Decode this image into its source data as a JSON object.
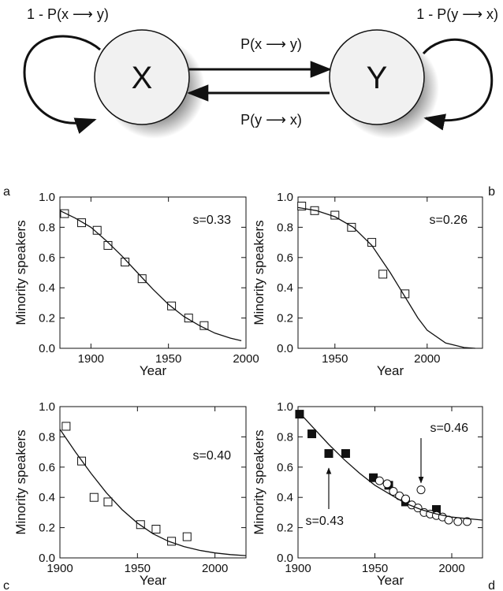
{
  "diagram": {
    "node_x": "X",
    "node_y": "Y",
    "label_self_x": "1 - P(x ⟶ y)",
    "label_self_y": "1 - P(y ⟶ x)",
    "label_x_to_y": "P(x ⟶ y)",
    "label_y_to_x": "P(y ⟶ x)"
  },
  "chart_data": [
    {
      "type": "scatter",
      "panel_label": "a",
      "xlabel": "Year",
      "ylabel": "Minority speakers",
      "xlim": [
        1880,
        2000
      ],
      "ylim": [
        0,
        1
      ],
      "xticks": [
        1900,
        1950,
        2000
      ],
      "yticks": [
        0.0,
        0.2,
        0.4,
        0.6,
        0.8,
        1.0
      ],
      "annotations": [
        {
          "text": "s=0.33"
        }
      ],
      "series": [
        {
          "marker": "open-square",
          "x": [
            1883,
            1894,
            1904,
            1911,
            1922,
            1933,
            1952,
            1963,
            1973
          ],
          "y": [
            0.89,
            0.83,
            0.78,
            0.68,
            0.57,
            0.46,
            0.28,
            0.2,
            0.15
          ]
        },
        {
          "marker": "line",
          "x": [
            1880,
            1890,
            1900,
            1910,
            1920,
            1930,
            1940,
            1950,
            1960,
            1970,
            1980,
            1990,
            1997
          ],
          "y": [
            0.91,
            0.86,
            0.8,
            0.71,
            0.61,
            0.5,
            0.39,
            0.29,
            0.21,
            0.15,
            0.1,
            0.067,
            0.05
          ]
        }
      ]
    },
    {
      "type": "scatter",
      "panel_label": "b",
      "xlabel": "Year",
      "ylabel": "Minority speakers",
      "xlim": [
        1930,
        2030
      ],
      "ylim": [
        0,
        1
      ],
      "xticks": [
        1950,
        2000
      ],
      "yticks": [
        0.0,
        0.2,
        0.4,
        0.6,
        0.8,
        1.0
      ],
      "annotations": [
        {
          "text": "s=0.26"
        }
      ],
      "series": [
        {
          "marker": "open-square",
          "x": [
            1932,
            1939,
            1950,
            1959,
            1970,
            1976,
            1988
          ],
          "y": [
            0.94,
            0.91,
            0.88,
            0.8,
            0.7,
            0.49,
            0.36
          ]
        },
        {
          "marker": "line",
          "x": [
            1930,
            1940,
            1950,
            1960,
            1970,
            1975,
            1980,
            1985,
            1990,
            1995,
            2000,
            2010,
            2020,
            2026
          ],
          "y": [
            0.93,
            0.91,
            0.87,
            0.8,
            0.68,
            0.59,
            0.5,
            0.4,
            0.3,
            0.2,
            0.12,
            0.035,
            0.005,
            0.0
          ]
        }
      ]
    },
    {
      "type": "scatter",
      "panel_label": "c",
      "xlabel": "Year",
      "ylabel": "Minority speakers",
      "xlim": [
        1900,
        2020
      ],
      "ylim": [
        0,
        1
      ],
      "xticks": [
        1900,
        1950,
        2000
      ],
      "yticks": [
        0.0,
        0.2,
        0.4,
        0.6,
        0.8,
        1.0
      ],
      "annotations": [
        {
          "text": "s=0.40"
        }
      ],
      "series": [
        {
          "marker": "open-square",
          "x": [
            1904,
            1914,
            1922,
            1931,
            1952,
            1962,
            1972,
            1982
          ],
          "y": [
            0.87,
            0.64,
            0.4,
            0.37,
            0.22,
            0.19,
            0.11,
            0.14
          ]
        },
        {
          "marker": "line",
          "x": [
            1900,
            1910,
            1920,
            1930,
            1940,
            1950,
            1960,
            1970,
            1980,
            1990,
            2000,
            2010,
            2020
          ],
          "y": [
            0.85,
            0.7,
            0.56,
            0.43,
            0.32,
            0.23,
            0.16,
            0.11,
            0.075,
            0.05,
            0.033,
            0.022,
            0.015
          ]
        }
      ]
    },
    {
      "type": "scatter",
      "panel_label": "d",
      "xlabel": "Year",
      "ylabel": "Minority speakers",
      "xlim": [
        1900,
        2020
      ],
      "ylim": [
        0,
        1
      ],
      "xticks": [
        1900,
        1950,
        2000
      ],
      "yticks": [
        0.0,
        0.2,
        0.4,
        0.6,
        0.8,
        1.0
      ],
      "annotations": [
        {
          "text": "s=0.46",
          "points_to": [
            1980,
            0.45
          ]
        },
        {
          "text": "s=0.43",
          "points_to": [
            1920,
            0.64
          ]
        }
      ],
      "series": [
        {
          "marker": "filled-square",
          "x": [
            1901,
            1909,
            1920,
            1931,
            1949,
            1959,
            1970,
            1990
          ],
          "y": [
            0.95,
            0.82,
            0.69,
            0.69,
            0.53,
            0.48,
            0.37,
            0.32
          ]
        },
        {
          "marker": "open-circle",
          "x": [
            1953,
            1958,
            1962,
            1966,
            1970,
            1974,
            1978,
            1980,
            1982,
            1986,
            1990,
            1994,
            1998,
            2004,
            2010
          ],
          "y": [
            0.51,
            0.49,
            0.44,
            0.41,
            0.39,
            0.35,
            0.33,
            0.45,
            0.3,
            0.29,
            0.28,
            0.27,
            0.25,
            0.24,
            0.24
          ]
        },
        {
          "marker": "line",
          "x": [
            1900,
            1910,
            1920,
            1930,
            1940,
            1950,
            1960,
            1970,
            1980,
            1990,
            2000,
            2010,
            2020
          ],
          "y": [
            0.97,
            0.86,
            0.75,
            0.65,
            0.56,
            0.48,
            0.42,
            0.36,
            0.32,
            0.29,
            0.27,
            0.26,
            0.25
          ]
        }
      ]
    }
  ]
}
